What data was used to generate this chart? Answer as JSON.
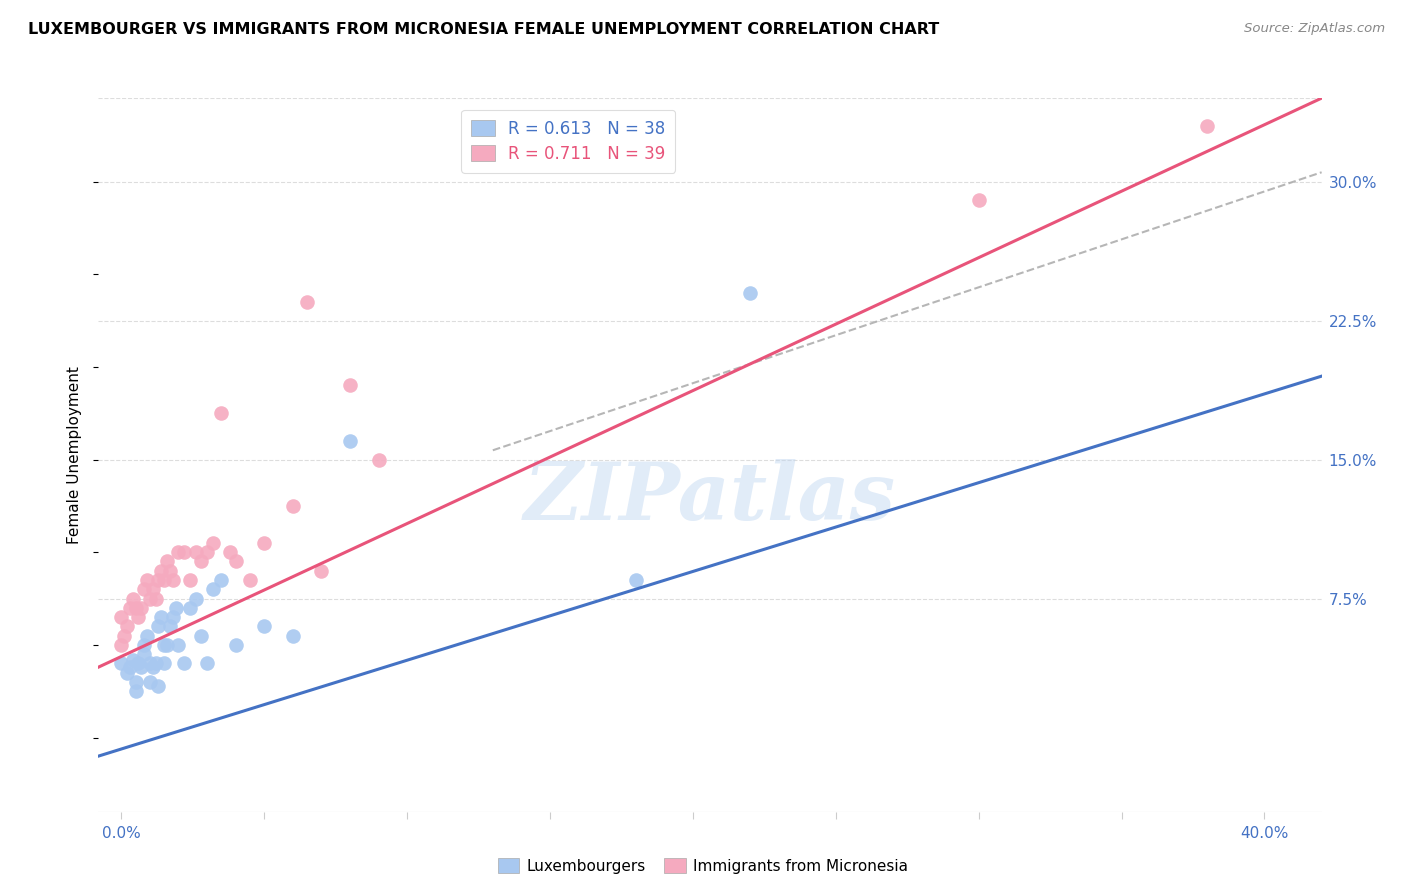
{
  "title": "LUXEMBOURGER VS IMMIGRANTS FROM MICRONESIA FEMALE UNEMPLOYMENT CORRELATION CHART",
  "source": "Source: ZipAtlas.com",
  "ylabel": "Female Unemployment",
  "yticks_labels": [
    "7.5%",
    "15.0%",
    "22.5%",
    "30.0%"
  ],
  "ytick_vals": [
    0.075,
    0.15,
    0.225,
    0.3
  ],
  "xtick_vals": [
    0.0,
    0.05,
    0.1,
    0.15,
    0.2,
    0.25,
    0.3,
    0.35,
    0.4
  ],
  "xlim": [
    -0.008,
    0.42
  ],
  "ylim": [
    -0.04,
    0.345
  ],
  "blue_R": 0.613,
  "blue_N": 38,
  "pink_R": 0.711,
  "pink_N": 39,
  "blue_color": "#A8C8F0",
  "pink_color": "#F5AABF",
  "blue_line_color": "#4472C4",
  "pink_line_color": "#E8547A",
  "dashed_line_color": "#AAAAAA",
  "watermark": "ZIPatlas",
  "legend_label_blue": "Luxembourgers",
  "legend_label_pink": "Immigrants from Micronesia",
  "blue_scatter_x": [
    0.0,
    0.002,
    0.003,
    0.004,
    0.005,
    0.005,
    0.006,
    0.007,
    0.008,
    0.008,
    0.009,
    0.01,
    0.01,
    0.011,
    0.012,
    0.013,
    0.013,
    0.014,
    0.015,
    0.015,
    0.016,
    0.017,
    0.018,
    0.019,
    0.02,
    0.022,
    0.024,
    0.026,
    0.028,
    0.03,
    0.032,
    0.035,
    0.04,
    0.05,
    0.06,
    0.08,
    0.18,
    0.22
  ],
  "blue_scatter_y": [
    0.04,
    0.035,
    0.038,
    0.042,
    0.025,
    0.03,
    0.04,
    0.038,
    0.045,
    0.05,
    0.055,
    0.03,
    0.04,
    0.038,
    0.04,
    0.028,
    0.06,
    0.065,
    0.04,
    0.05,
    0.05,
    0.06,
    0.065,
    0.07,
    0.05,
    0.04,
    0.07,
    0.075,
    0.055,
    0.04,
    0.08,
    0.085,
    0.05,
    0.06,
    0.055,
    0.16,
    0.085,
    0.24
  ],
  "pink_scatter_x": [
    0.0,
    0.0,
    0.001,
    0.002,
    0.003,
    0.004,
    0.005,
    0.006,
    0.007,
    0.008,
    0.009,
    0.01,
    0.011,
    0.012,
    0.013,
    0.014,
    0.015,
    0.016,
    0.017,
    0.018,
    0.02,
    0.022,
    0.024,
    0.026,
    0.028,
    0.03,
    0.032,
    0.035,
    0.038,
    0.04,
    0.045,
    0.05,
    0.06,
    0.065,
    0.07,
    0.08,
    0.09,
    0.3,
    0.38
  ],
  "pink_scatter_y": [
    0.05,
    0.065,
    0.055,
    0.06,
    0.07,
    0.075,
    0.07,
    0.065,
    0.07,
    0.08,
    0.085,
    0.075,
    0.08,
    0.075,
    0.085,
    0.09,
    0.085,
    0.095,
    0.09,
    0.085,
    0.1,
    0.1,
    0.085,
    0.1,
    0.095,
    0.1,
    0.105,
    0.175,
    0.1,
    0.095,
    0.085,
    0.105,
    0.125,
    0.235,
    0.09,
    0.19,
    0.15,
    0.29,
    0.33
  ],
  "blue_line_x0": -0.008,
  "blue_line_x1": 0.42,
  "blue_line_y0": -0.01,
  "blue_line_y1": 0.195,
  "pink_line_x0": -0.008,
  "pink_line_x1": 0.42,
  "pink_line_y0": 0.038,
  "pink_line_y1": 0.345,
  "dash_line_x0": 0.13,
  "dash_line_x1": 0.42,
  "dash_line_y0": 0.155,
  "dash_line_y1": 0.305,
  "grid_color": "#DDDDDD",
  "axis_color": "#CCCCCC"
}
